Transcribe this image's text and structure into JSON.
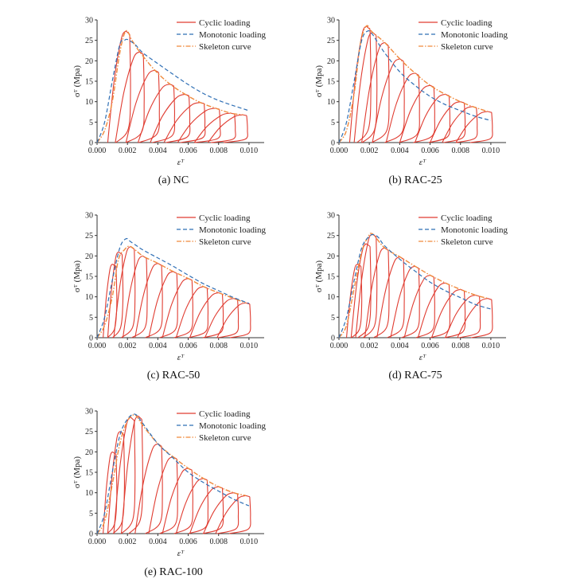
{
  "figure": {
    "captions": [
      "(a) NC",
      "(b) RAC-25",
      "(c) RAC-50",
      "(d) RAC-75",
      "(e) RAC-100"
    ]
  },
  "legend": {
    "cyclic": "Cyclic loading",
    "monotonic": "Monotonic loading",
    "skeleton": "Skeleton curve"
  },
  "axes": {
    "xlabel": "εᵀ",
    "ylabel": "σᵀ (Mpa)",
    "xticks": [
      "0.000",
      "0.002",
      "0.004",
      "0.006",
      "0.008",
      "0.010"
    ],
    "yticks": [
      "0",
      "5",
      "10",
      "15",
      "20",
      "25",
      "30"
    ]
  },
  "colors": {
    "cyclic": "#e03c31",
    "monotonic": "#2f6fb5",
    "skeleton": "#f08a3c"
  },
  "chart_data": [
    {
      "type": "line",
      "title": "(a) NC",
      "xlabel": "εᵀ",
      "ylabel": "σᵀ (Mpa)",
      "xlim": [
        0,
        0.011
      ],
      "ylim": [
        0,
        30
      ],
      "series": [
        {
          "name": "Skeleton curve",
          "x": [
            0,
            0.0005,
            0.001,
            0.0015,
            0.0019,
            0.0023,
            0.0028,
            0.0038,
            0.0048,
            0.0058,
            0.0068,
            0.0078,
            0.0088,
            0.0096
          ],
          "y": [
            0,
            3,
            10,
            22,
            27.3,
            25,
            22.2,
            17.7,
            14.3,
            11.8,
            9.8,
            8.4,
            7.2,
            6.8
          ]
        },
        {
          "name": "Monotonic loading",
          "x": [
            0,
            0.0005,
            0.001,
            0.0015,
            0.0018,
            0.002,
            0.0025,
            0.003,
            0.004,
            0.005,
            0.006,
            0.007,
            0.008,
            0.009,
            0.01
          ],
          "y": [
            0,
            5,
            15,
            24,
            25,
            25.2,
            24,
            22,
            19.3,
            16.7,
            14.2,
            12,
            10.3,
            9,
            7.8
          ]
        },
        {
          "name": "Cyclic loading",
          "peaks_x": [
            0.0019,
            0.0028,
            0.0038,
            0.0048,
            0.0058,
            0.0068,
            0.0078,
            0.0088,
            0.0096
          ],
          "peaks_y": [
            27.3,
            22.2,
            17.7,
            14.3,
            11.8,
            9.8,
            8.4,
            7.2,
            6.8
          ],
          "residual_x": [
            0.0007,
            0.0012,
            0.0019,
            0.0027,
            0.0035,
            0.0044,
            0.0053,
            0.0064,
            0.0073
          ]
        }
      ]
    },
    {
      "type": "line",
      "title": "(b) RAC-25",
      "xlabel": "εᵀ",
      "ylabel": "σᵀ (Mpa)",
      "xlim": [
        0,
        0.011
      ],
      "ylim": [
        0,
        30
      ],
      "series": [
        {
          "name": "Skeleton curve",
          "x": [
            0,
            0.0005,
            0.001,
            0.0014,
            0.0018,
            0.0022,
            0.003,
            0.004,
            0.005,
            0.006,
            0.007,
            0.008,
            0.0088,
            0.0098
          ],
          "y": [
            0,
            3,
            12,
            24,
            28.5,
            27,
            24.5,
            20.5,
            17,
            14,
            11.8,
            10,
            8.8,
            7.6
          ]
        },
        {
          "name": "Monotonic loading",
          "x": [
            0,
            0.0005,
            0.001,
            0.0015,
            0.0019,
            0.0022,
            0.0025,
            0.003,
            0.004,
            0.005,
            0.006,
            0.007,
            0.008,
            0.009,
            0.01
          ],
          "y": [
            0,
            5,
            15,
            25,
            27.3,
            26.5,
            24.8,
            22,
            17.3,
            14,
            11.3,
            9.3,
            7.8,
            6.4,
            5.4
          ]
        },
        {
          "name": "Cyclic loading",
          "peaks_x": [
            0.0018,
            0.0022,
            0.003,
            0.004,
            0.005,
            0.006,
            0.007,
            0.008,
            0.0088,
            0.0098
          ],
          "peaks_y": [
            28.5,
            27,
            24.5,
            20.5,
            17,
            14,
            11.8,
            10,
            8.8,
            7.6
          ],
          "residual_x": [
            0.0007,
            0.001,
            0.0015,
            0.0022,
            0.0031,
            0.004,
            0.005,
            0.006,
            0.0068,
            0.0077
          ]
        }
      ]
    },
    {
      "type": "line",
      "title": "(c) RAC-50",
      "xlabel": "εᵀ",
      "ylabel": "σᵀ (Mpa)",
      "xlim": [
        0,
        0.011
      ],
      "ylim": [
        0,
        30
      ],
      "series": [
        {
          "name": "Skeleton curve",
          "x": [
            0,
            0.0005,
            0.001,
            0.0014,
            0.0018,
            0.0022,
            0.003,
            0.004,
            0.005,
            0.006,
            0.007,
            0.008,
            0.009,
            0.0098
          ],
          "y": [
            0,
            3,
            10,
            19,
            21.5,
            22.3,
            20,
            18.2,
            16.2,
            14.5,
            12.5,
            11,
            9.6,
            8.5
          ]
        },
        {
          "name": "Monotonic loading",
          "x": [
            0,
            0.0005,
            0.001,
            0.0015,
            0.0019,
            0.0022,
            0.0026,
            0.003,
            0.004,
            0.005,
            0.006,
            0.007,
            0.008,
            0.009,
            0.01
          ],
          "y": [
            0,
            5,
            14,
            22,
            24.2,
            23.5,
            22.5,
            21.5,
            19.5,
            17.5,
            15.3,
            13.2,
            11.5,
            9.8,
            8.4
          ]
        },
        {
          "name": "Cyclic loading",
          "peaks_x": [
            0.001,
            0.0014,
            0.0022,
            0.003,
            0.004,
            0.005,
            0.006,
            0.007,
            0.008,
            0.009,
            0.0098
          ],
          "peaks_y": [
            18,
            21,
            22.3,
            20,
            18.2,
            16.2,
            14.5,
            12.5,
            11,
            9.6,
            8.5
          ],
          "residual_x": [
            0.0004,
            0.0007,
            0.0011,
            0.0017,
            0.0025,
            0.0034,
            0.0043,
            0.0052,
            0.0061,
            0.0071,
            0.0079
          ]
        }
      ]
    },
    {
      "type": "line",
      "title": "(d) RAC-75",
      "xlabel": "εᵀ",
      "ylabel": "σᵀ (Mpa)",
      "xlim": [
        0,
        0.011
      ],
      "ylim": [
        0,
        30
      ],
      "series": [
        {
          "name": "Skeleton curve",
          "x": [
            0,
            0.0005,
            0.001,
            0.0015,
            0.0019,
            0.0022,
            0.003,
            0.004,
            0.005,
            0.006,
            0.007,
            0.008,
            0.009,
            0.0098
          ],
          "y": [
            0,
            3,
            12,
            21,
            24.5,
            25.4,
            22,
            19.8,
            17.5,
            15.3,
            13.4,
            11.8,
            10.4,
            9.6
          ]
        },
        {
          "name": "Monotonic loading",
          "x": [
            0,
            0.0005,
            0.001,
            0.0015,
            0.002,
            0.0023,
            0.0026,
            0.003,
            0.004,
            0.005,
            0.006,
            0.007,
            0.008,
            0.009,
            0.01
          ],
          "y": [
            0,
            5,
            14,
            22,
            24.8,
            25.2,
            24.5,
            22.5,
            19.2,
            16.3,
            13.6,
            11.5,
            9.8,
            8.1,
            7
          ]
        },
        {
          "name": "Cyclic loading",
          "peaks_x": [
            0.0012,
            0.0018,
            0.0022,
            0.003,
            0.004,
            0.005,
            0.006,
            0.007,
            0.008,
            0.009,
            0.0098
          ],
          "peaks_y": [
            18,
            23,
            25.4,
            22,
            19.8,
            17.5,
            15.3,
            13.4,
            11.8,
            10.4,
            9.6
          ],
          "residual_x": [
            0.0005,
            0.0008,
            0.0011,
            0.0017,
            0.0025,
            0.0034,
            0.0043,
            0.0052,
            0.0061,
            0.007,
            0.0078
          ]
        }
      ]
    },
    {
      "type": "line",
      "title": "(e) RAC-100",
      "xlabel": "εᵀ",
      "ylabel": "σᵀ (Mpa)",
      "xlim": [
        0,
        0.011
      ],
      "ylim": [
        0,
        30
      ],
      "series": [
        {
          "name": "Skeleton curve",
          "x": [
            0,
            0.0005,
            0.001,
            0.0015,
            0.002,
            0.0025,
            0.003,
            0.004,
            0.005,
            0.006,
            0.007,
            0.008,
            0.009,
            0.0098
          ],
          "y": [
            0,
            3,
            12,
            22,
            27.5,
            29,
            26.5,
            22,
            18.8,
            16,
            13.5,
            11.5,
            10,
            9.3
          ]
        },
        {
          "name": "Monotonic loading",
          "x": [
            0,
            0.0005,
            0.001,
            0.0015,
            0.002,
            0.0025,
            0.003,
            0.004,
            0.005,
            0.006,
            0.007,
            0.008,
            0.009,
            0.01
          ],
          "y": [
            0,
            5,
            15,
            24,
            28,
            29.2,
            27,
            22,
            18.5,
            15,
            12.5,
            10.4,
            8.4,
            6.8
          ]
        },
        {
          "name": "Cyclic loading",
          "peaks_x": [
            0.001,
            0.0015,
            0.0022,
            0.0027,
            0.004,
            0.005,
            0.006,
            0.007,
            0.008,
            0.009,
            0.0098
          ],
          "peaks_y": [
            20,
            25,
            28.5,
            28.8,
            22,
            18.8,
            16,
            13.5,
            11.5,
            10,
            9.3
          ],
          "residual_x": [
            0.0004,
            0.0007,
            0.0011,
            0.0016,
            0.0025,
            0.0034,
            0.0043,
            0.0052,
            0.0061,
            0.007,
            0.0078
          ]
        }
      ]
    }
  ]
}
